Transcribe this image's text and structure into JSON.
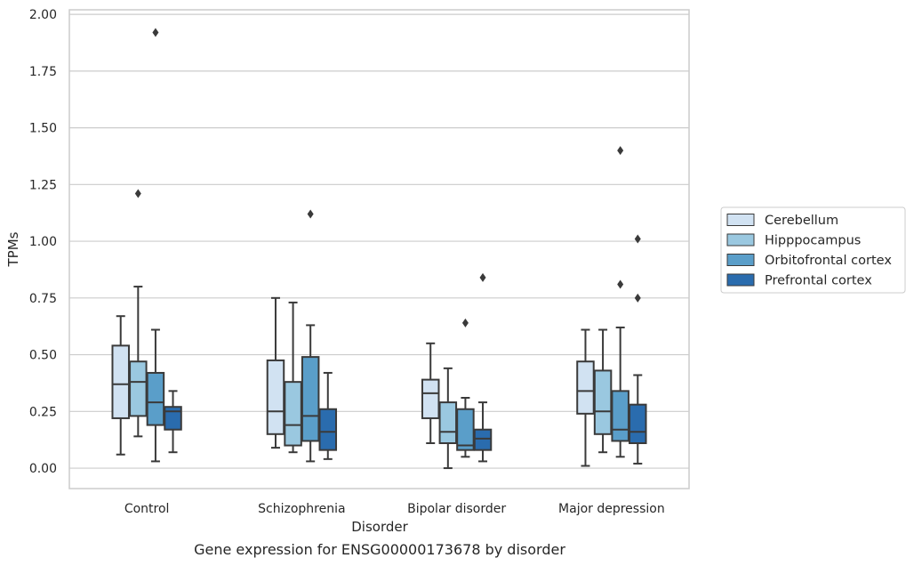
{
  "chart_data": {
    "type": "box",
    "title": "",
    "caption": "Gene expression for ENSG00000173678 by disorder",
    "xlabel": "Disorder",
    "ylabel": "TPMs",
    "ylim": [
      -0.09,
      2.02
    ],
    "yticks": [
      "0.00",
      "0.25",
      "0.50",
      "0.75",
      "1.00",
      "1.25",
      "1.50",
      "1.75",
      "2.00"
    ],
    "grid": "horizontal",
    "legend_position": "right",
    "categories": [
      "Control",
      "Schizophrenia",
      "Bipolar disorder",
      "Major depression"
    ],
    "series": [
      {
        "name": "Cerebellum",
        "color": "#d1e2f2",
        "boxes": [
          {
            "whisker_low": 0.06,
            "q1": 0.22,
            "median": 0.37,
            "q3": 0.54,
            "whisker_high": 0.67,
            "outliers": []
          },
          {
            "whisker_low": 0.09,
            "q1": 0.15,
            "median": 0.25,
            "q3": 0.475,
            "whisker_high": 0.75,
            "outliers": []
          },
          {
            "whisker_low": 0.11,
            "q1": 0.22,
            "median": 0.33,
            "q3": 0.39,
            "whisker_high": 0.55,
            "outliers": []
          },
          {
            "whisker_low": 0.01,
            "q1": 0.24,
            "median": 0.34,
            "q3": 0.47,
            "whisker_high": 0.61,
            "outliers": []
          }
        ]
      },
      {
        "name": "Hipppocampus",
        "color": "#9ac8e0",
        "boxes": [
          {
            "whisker_low": 0.14,
            "q1": 0.23,
            "median": 0.38,
            "q3": 0.47,
            "whisker_high": 0.8,
            "outliers": [
              1.21
            ]
          },
          {
            "whisker_low": 0.07,
            "q1": 0.1,
            "median": 0.19,
            "q3": 0.38,
            "whisker_high": 0.73,
            "outliers": []
          },
          {
            "whisker_low": 0.0,
            "q1": 0.11,
            "median": 0.16,
            "q3": 0.29,
            "whisker_high": 0.44,
            "outliers": []
          },
          {
            "whisker_low": 0.07,
            "q1": 0.15,
            "median": 0.25,
            "q3": 0.43,
            "whisker_high": 0.61,
            "outliers": []
          }
        ]
      },
      {
        "name": "Orbitofrontal cortex",
        "color": "#5a9ec9",
        "boxes": [
          {
            "whisker_low": 0.03,
            "q1": 0.19,
            "median": 0.29,
            "q3": 0.42,
            "whisker_high": 0.61,
            "outliers": [
              1.92
            ]
          },
          {
            "whisker_low": 0.03,
            "q1": 0.12,
            "median": 0.23,
            "q3": 0.49,
            "whisker_high": 0.63,
            "outliers": [
              1.12
            ]
          },
          {
            "whisker_low": 0.05,
            "q1": 0.08,
            "median": 0.1,
            "q3": 0.26,
            "whisker_high": 0.31,
            "outliers": [
              0.64
            ]
          },
          {
            "whisker_low": 0.05,
            "q1": 0.12,
            "median": 0.17,
            "q3": 0.34,
            "whisker_high": 0.62,
            "outliers": [
              0.81,
              1.4
            ]
          }
        ]
      },
      {
        "name": "Prefrontal cortex",
        "color": "#2a6cae",
        "boxes": [
          {
            "whisker_low": 0.07,
            "q1": 0.17,
            "median": 0.25,
            "q3": 0.27,
            "whisker_high": 0.34,
            "outliers": []
          },
          {
            "whisker_low": 0.04,
            "q1": 0.08,
            "median": 0.16,
            "q3": 0.26,
            "whisker_high": 0.42,
            "outliers": []
          },
          {
            "whisker_low": 0.03,
            "q1": 0.08,
            "median": 0.13,
            "q3": 0.17,
            "whisker_high": 0.29,
            "outliers": [
              0.84
            ]
          },
          {
            "whisker_low": 0.02,
            "q1": 0.11,
            "median": 0.16,
            "q3": 0.28,
            "whisker_high": 0.41,
            "outliers": [
              0.75,
              1.01
            ]
          }
        ]
      }
    ]
  }
}
